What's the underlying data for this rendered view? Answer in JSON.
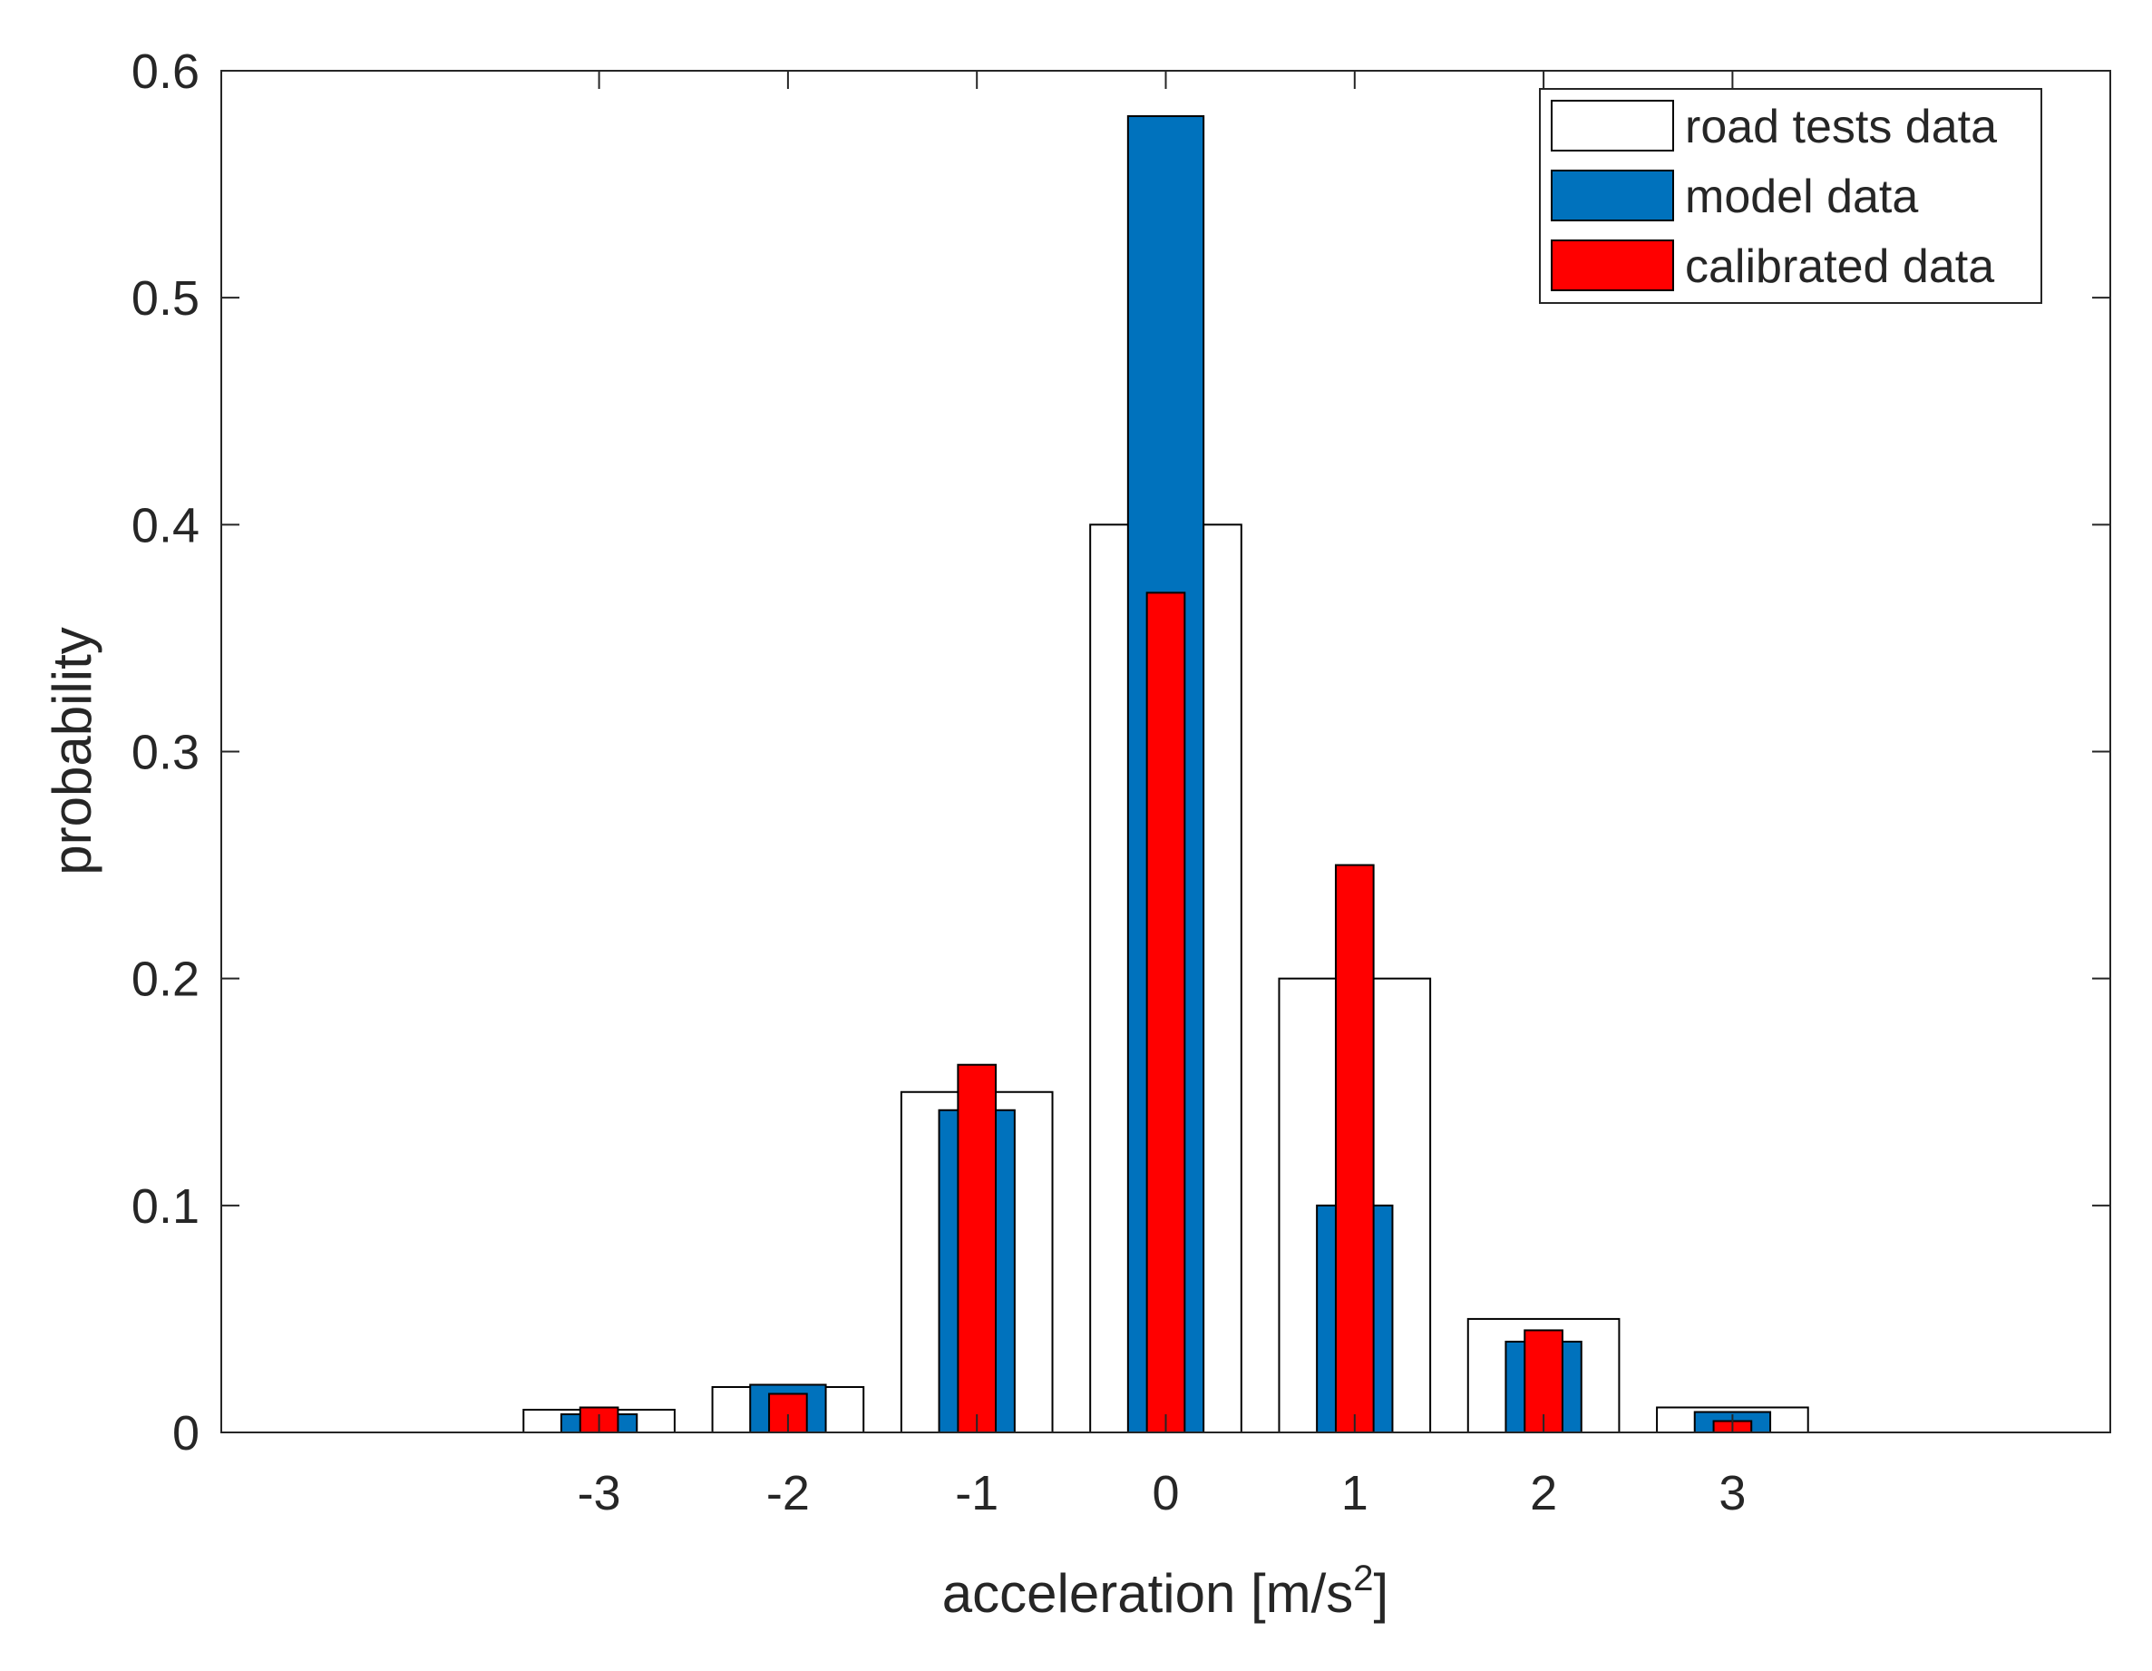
{
  "chart_data": {
    "type": "bar",
    "title": "",
    "xlabel": "acceleration [m/s",
    "xlabel_superscript": "2",
    "xlabel_suffix": "]",
    "ylabel": "probability",
    "categories": [
      "-3",
      "-2",
      "-1",
      "0",
      "1",
      "2",
      "3"
    ],
    "x": [
      -3,
      -2,
      -1,
      0,
      1,
      2,
      3
    ],
    "xlim": [
      -5,
      5
    ],
    "ylim": [
      0,
      0.6
    ],
    "yticks": [
      0,
      0.1,
      0.2,
      0.3,
      0.4,
      0.5,
      0.6
    ],
    "ytick_labels": [
      "0",
      "0.1",
      "0.2",
      "0.3",
      "0.4",
      "0.5",
      "0.6"
    ],
    "grid": false,
    "legend_position": "top-right",
    "series": [
      {
        "name": "road tests data",
        "color": "#ffffff",
        "values": [
          0.01,
          0.02,
          0.15,
          0.4,
          0.2,
          0.05,
          0.011
        ]
      },
      {
        "name": "model data",
        "color": "#0072BD",
        "values": [
          0.008,
          0.021,
          0.142,
          0.58,
          0.1,
          0.04,
          0.009
        ]
      },
      {
        "name": "calibrated data",
        "color": "#FF0000",
        "values": [
          0.011,
          0.017,
          0.162,
          0.37,
          0.25,
          0.045,
          0.005
        ]
      }
    ]
  }
}
